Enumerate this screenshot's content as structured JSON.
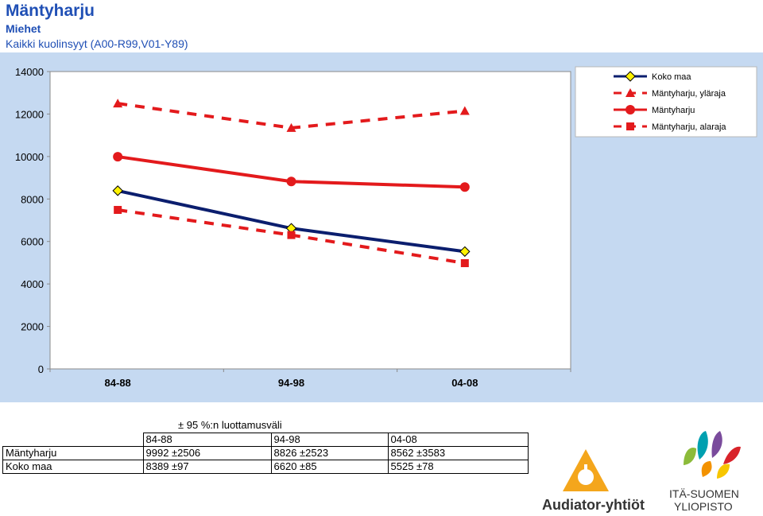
{
  "header": {
    "title": "Mäntyharju",
    "subtitle": "Miehet",
    "cause": "Kaikki kuolinsyyt (A00-R99,V01-Y89)"
  },
  "chart_data": {
    "type": "line",
    "categories": [
      "84-88",
      "94-98",
      "04-08"
    ],
    "ylim": [
      0,
      14000
    ],
    "yticks": [
      0,
      2000,
      4000,
      6000,
      8000,
      10000,
      12000,
      14000
    ],
    "legend_position": "top-right",
    "series": [
      {
        "name": "Koko maa",
        "values": [
          8389,
          6620,
          5525
        ],
        "color": "#0b1e6e",
        "marker": "diamond",
        "dash": false
      },
      {
        "name": "Mäntyharju, yläraja",
        "values": [
          12498,
          11349,
          12145
        ],
        "color": "#e31a1c",
        "marker": "triangle",
        "dash": true
      },
      {
        "name": "Mäntyharju",
        "values": [
          9992,
          8826,
          8562
        ],
        "color": "#e31a1c",
        "marker": "circle",
        "dash": false
      },
      {
        "name": "Mäntyharju, alaraja",
        "values": [
          7486,
          6303,
          4979
        ],
        "color": "#e31a1c",
        "marker": "square",
        "dash": true
      }
    ]
  },
  "table": {
    "caption": "± 95 %:n luottamusväli",
    "header": [
      "",
      "84-88",
      "94-98",
      "04-08"
    ],
    "rows": [
      [
        "Mäntyharju",
        "9992 ±2506",
        "8826 ±2523",
        "8562 ±3583"
      ],
      [
        "Koko maa",
        "8389 ±97",
        "6620 ±85",
        "5525 ±78"
      ]
    ]
  },
  "logos": {
    "audiator": "Audiator-yhtiöt",
    "uef_line1": "ITÄ-SUOMEN",
    "uef_line2": "YLIOPISTO"
  }
}
